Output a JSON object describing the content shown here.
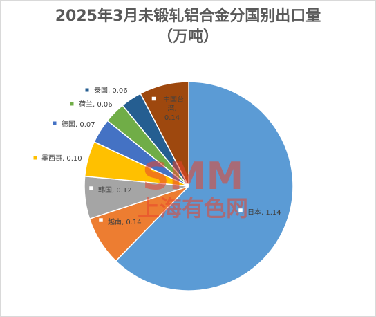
{
  "title_line1": "2025年3月未锻轧铝合金分国别出口量",
  "title_line2": "（万吨）",
  "watermark": {
    "logo": "SMM",
    "text": "上海有色网",
    "color": "#e8442c"
  },
  "chart_data": {
    "type": "pie",
    "title": "2025年3月未锻轧铝合金分国别出口量（万吨）",
    "series": [
      {
        "name": "日本",
        "value": 1.14,
        "label": "日本, 1.14",
        "color": "#5b9bd5"
      },
      {
        "name": "越南",
        "value": 0.14,
        "label": "越南, 0.14",
        "color": "#ed7d31"
      },
      {
        "name": "韩国",
        "value": 0.12,
        "label": "韩国, 0.12",
        "color": "#a5a5a5"
      },
      {
        "name": "墨西哥",
        "value": 0.1,
        "label": "墨西哥, 0.10",
        "color": "#ffc000"
      },
      {
        "name": "德国",
        "value": 0.07,
        "label": "德国, 0.07",
        "color": "#4472c4"
      },
      {
        "name": "荷兰",
        "value": 0.06,
        "label": "荷兰, 0.06",
        "color": "#70ad47"
      },
      {
        "name": "泰国",
        "value": 0.06,
        "label": "泰国, 0.06",
        "color": "#255e91"
      },
      {
        "name": "中国台湾",
        "value": 0.14,
        "label_lines": [
          "中国台",
          "湾,",
          "0.14"
        ],
        "color": "#9e480e"
      }
    ],
    "start": "12 o'clock",
    "direction": "clockwise",
    "legend": "none",
    "data_labels": "category, value"
  }
}
